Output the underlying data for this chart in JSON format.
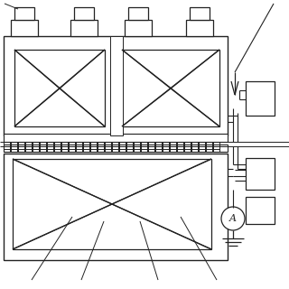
{
  "bg_color": "#ffffff",
  "line_color": "#222222",
  "lw": 0.9
}
